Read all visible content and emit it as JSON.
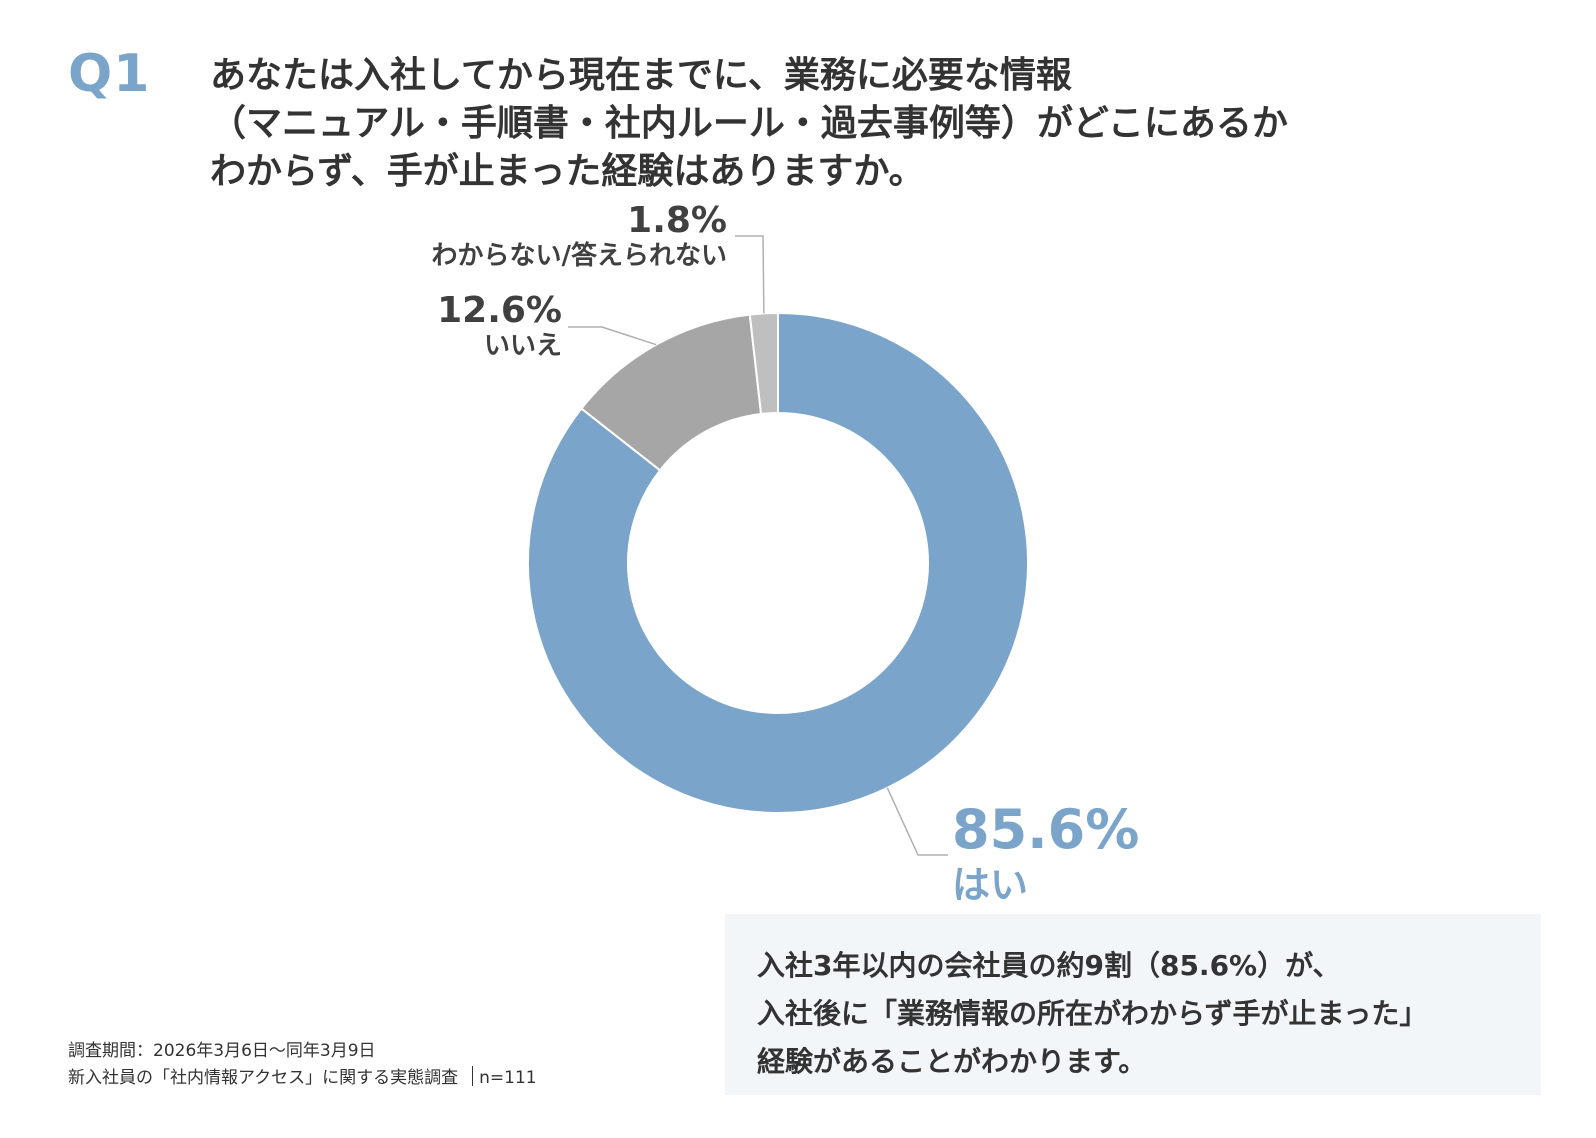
{
  "question": {
    "label": "Q1",
    "lines": [
      "あなたは入社してから現在までに、業務に必要な情報",
      "（マニュアル・手順書・社内ルール・過去事例等）がどこにあるか",
      "わからず、手が止まった経験はありますか。"
    ]
  },
  "chart_data": {
    "type": "pie",
    "donut": true,
    "categories": [
      "はい",
      "いいえ",
      "わからない/答えられない"
    ],
    "values": [
      85.6,
      12.6,
      1.8
    ],
    "value_labels": [
      "85.6%",
      "12.6%",
      "1.8%"
    ],
    "colors": [
      "#7aa4c9",
      "#a6a6a6",
      "#bfbfbf"
    ],
    "label_colors": [
      "#7aa4c9",
      "#404040",
      "#404040"
    ],
    "start": "12 o'clock",
    "direction": "clockwise",
    "title": ""
  },
  "summary": {
    "lines": [
      "入社3年以内の会社員の約9割（85.6%）が、",
      "入社後に「業務情報の所在がわからず手が止まった」",
      "経験があることがわかります。"
    ]
  },
  "footnote": {
    "period": "調査期間：2026年3月6日～同年3月9日",
    "survey": "新入社員の「社内情報アクセス」に関する実態調査",
    "n": "n=111"
  }
}
